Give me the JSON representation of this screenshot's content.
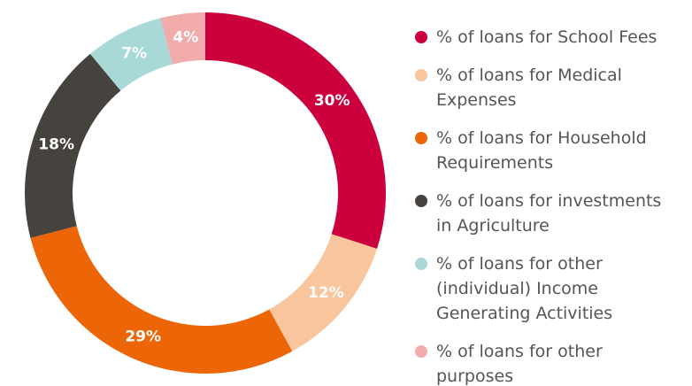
{
  "chart_data": {
    "type": "donut",
    "categories": [
      "% of loans for School Fees",
      "% of loans for Medical Expenses",
      "% of loans for Household Requirements",
      "% of loans for investments in Agriculture",
      "% of loans for other (individual) Income Generating Activities",
      "% of loans for other purposes"
    ],
    "values": [
      30,
      12,
      29,
      18,
      7,
      4
    ],
    "value_labels": [
      "30%",
      "12%",
      "29%",
      "18%",
      "7%",
      "4%"
    ],
    "colors": [
      "#cc003d",
      "#f8c59d",
      "#ec6608",
      "#46433f",
      "#a9d9d7",
      "#f0abaa"
    ],
    "legend": "right"
  }
}
